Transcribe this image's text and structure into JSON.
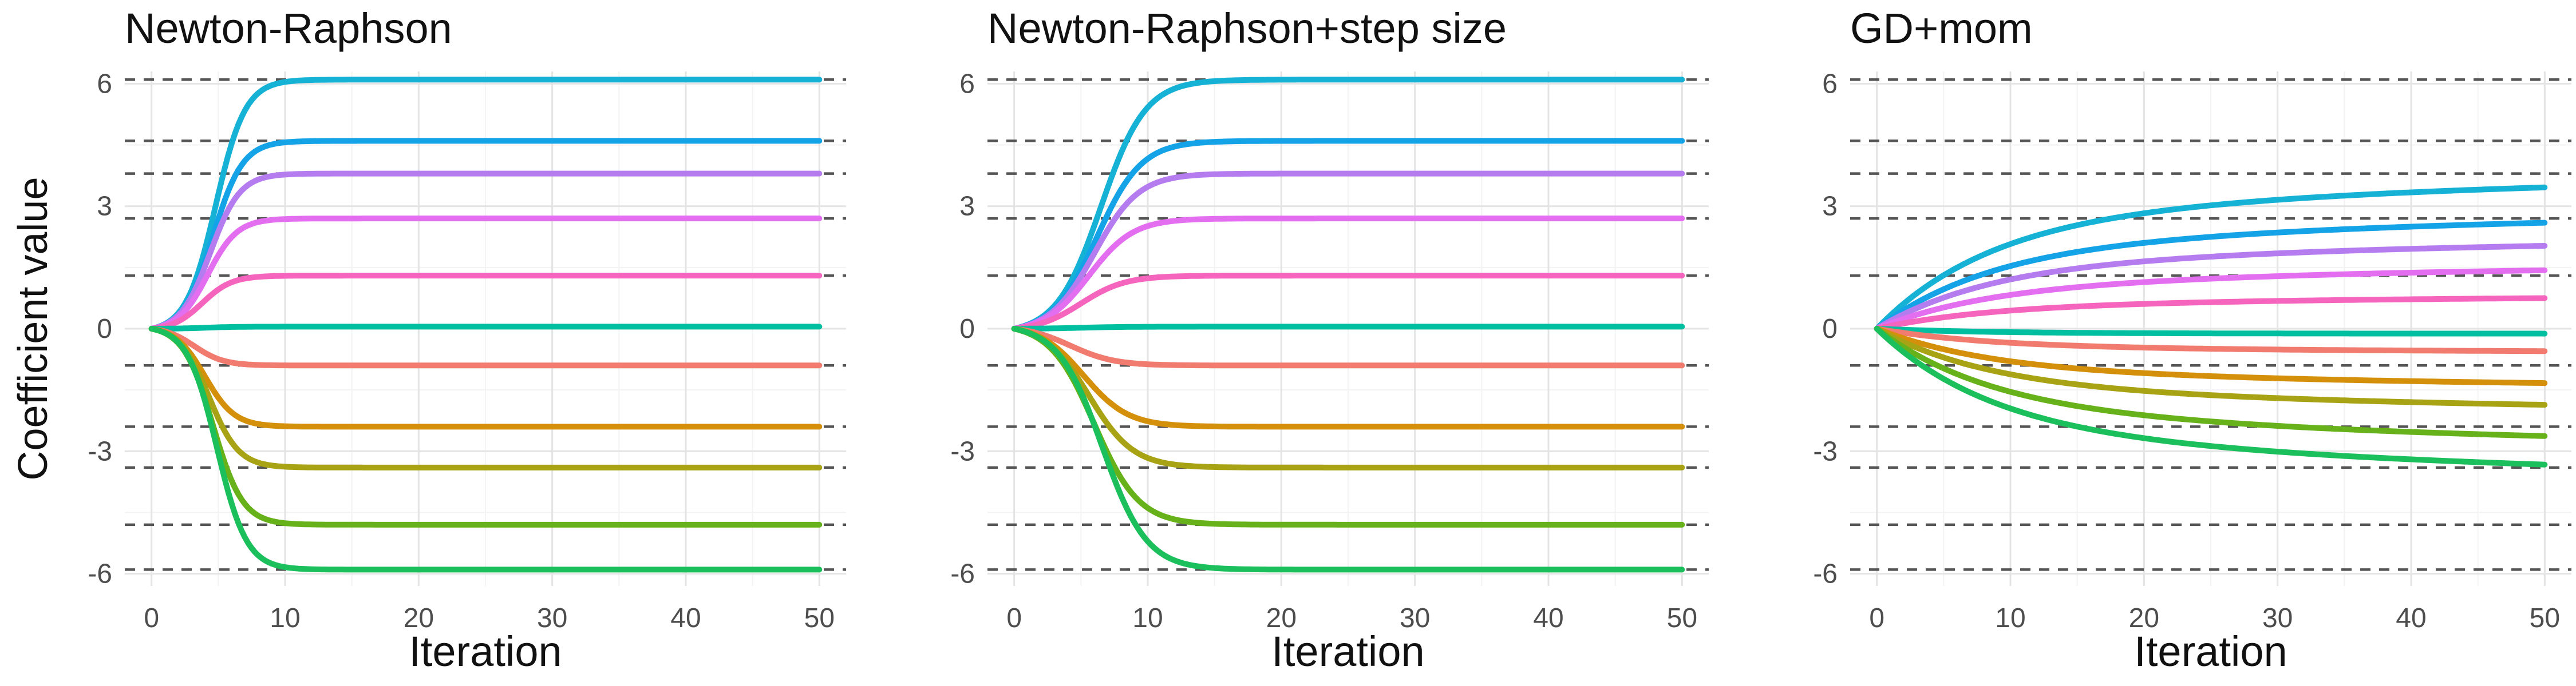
{
  "figure": {
    "ylabel": "Coefficient value"
  },
  "chart_data": [
    {
      "type": "line",
      "title": "Newton-Raphson",
      "xlabel": "Iteration",
      "ylabel": "Coefficient value",
      "xlim": [
        -2,
        52
      ],
      "ylim": [
        -6.3,
        6.3
      ],
      "x_ticks": [
        0,
        10,
        20,
        30,
        40,
        50
      ],
      "y_ticks": [
        -6,
        -3,
        0,
        3,
        6
      ],
      "grid": true,
      "reference_lines": [
        6.1,
        4.6,
        3.8,
        2.7,
        1.3,
        -0.9,
        -2.4,
        -3.4,
        -4.8,
        -5.9
      ],
      "curve_model": "sigmoid",
      "x_range": [
        0,
        50
      ],
      "series": [
        {
          "color": "#16b2d6",
          "final": 6.1,
          "rate": 0.9,
          "midpoint": 4.8
        },
        {
          "color": "#15a3e8",
          "final": 4.6,
          "rate": 0.9,
          "midpoint": 4.6
        },
        {
          "color": "#b57cf0",
          "final": 3.8,
          "rate": 0.9,
          "midpoint": 4.4
        },
        {
          "color": "#e36ef0",
          "final": 2.7,
          "rate": 0.9,
          "midpoint": 4.2
        },
        {
          "color": "#f564bd",
          "final": 1.3,
          "rate": 0.9,
          "midpoint": 3.8
        },
        {
          "color": "#00bfa0",
          "final": 0.05,
          "rate": 0.9,
          "midpoint": 4.0
        },
        {
          "color": "#f07b6e",
          "final": -0.9,
          "rate": 0.9,
          "midpoint": 3.2
        },
        {
          "color": "#d4900a",
          "final": -2.4,
          "rate": 0.9,
          "midpoint": 4.0
        },
        {
          "color": "#a8a314",
          "final": -3.4,
          "rate": 0.9,
          "midpoint": 4.3
        },
        {
          "color": "#67b21a",
          "final": -4.8,
          "rate": 0.9,
          "midpoint": 4.6
        },
        {
          "color": "#1bbf5c",
          "final": -5.9,
          "rate": 0.9,
          "midpoint": 4.9
        }
      ]
    },
    {
      "type": "line",
      "title": "Newton-Raphson+step size",
      "xlabel": "Iteration",
      "xlim": [
        -2,
        52
      ],
      "ylim": [
        -6.3,
        6.3
      ],
      "x_ticks": [
        0,
        10,
        20,
        30,
        40,
        50
      ],
      "y_ticks": [
        -6,
        -3,
        0,
        3,
        6
      ],
      "grid": true,
      "reference_lines": [
        6.1,
        4.6,
        3.8,
        2.7,
        1.3,
        -0.9,
        -2.4,
        -3.4,
        -4.8,
        -5.9
      ],
      "curve_model": "sigmoid",
      "x_range": [
        0,
        50
      ],
      "series": [
        {
          "color": "#16b2d6",
          "final": 6.1,
          "rate": 0.6,
          "midpoint": 6.5
        },
        {
          "color": "#15a3e8",
          "final": 4.6,
          "rate": 0.6,
          "midpoint": 6.2
        },
        {
          "color": "#b57cf0",
          "final": 3.8,
          "rate": 0.6,
          "midpoint": 6.0
        },
        {
          "color": "#e36ef0",
          "final": 2.7,
          "rate": 0.6,
          "midpoint": 5.6
        },
        {
          "color": "#f564bd",
          "final": 1.3,
          "rate": 0.6,
          "midpoint": 5.0
        },
        {
          "color": "#00bfa0",
          "final": 0.05,
          "rate": 0.6,
          "midpoint": 5.0
        },
        {
          "color": "#f07b6e",
          "final": -0.9,
          "rate": 0.6,
          "midpoint": 4.2
        },
        {
          "color": "#d4900a",
          "final": -2.4,
          "rate": 0.6,
          "midpoint": 5.2
        },
        {
          "color": "#a8a314",
          "final": -3.4,
          "rate": 0.6,
          "midpoint": 5.6
        },
        {
          "color": "#67b21a",
          "final": -4.8,
          "rate": 0.6,
          "midpoint": 6.0
        },
        {
          "color": "#1bbf5c",
          "final": -5.9,
          "rate": 0.6,
          "midpoint": 6.6
        }
      ]
    },
    {
      "type": "line",
      "title": "GD+mom",
      "xlabel": "Iteration",
      "xlim": [
        -2,
        52
      ],
      "ylim": [
        -6.3,
        6.3
      ],
      "x_ticks": [
        0,
        10,
        20,
        30,
        40,
        50
      ],
      "y_ticks": [
        -6,
        -3,
        0,
        3,
        6
      ],
      "grid": true,
      "reference_lines": [
        6.1,
        4.6,
        3.8,
        2.7,
        1.3,
        -0.9,
        -2.4,
        -3.4,
        -4.8,
        -5.9
      ],
      "curve_model": "saturating",
      "x_range": [
        0,
        50
      ],
      "series": [
        {
          "color": "#16b2d6",
          "a": 2.6,
          "k": 0.12,
          "b": 1.3,
          "m": 0.022
        },
        {
          "color": "#15a3e8",
          "a": 1.9,
          "k": 0.12,
          "b": 1.05,
          "m": 0.022
        },
        {
          "color": "#b57cf0",
          "a": 1.5,
          "k": 0.12,
          "b": 0.8,
          "m": 0.022
        },
        {
          "color": "#e36ef0",
          "a": 1.0,
          "k": 0.12,
          "b": 0.65,
          "m": 0.022
        },
        {
          "color": "#f564bd",
          "a": 0.55,
          "k": 0.12,
          "b": 0.3,
          "m": 0.022
        },
        {
          "color": "#00bfa0",
          "a": -0.12,
          "k": 0.12,
          "b": 0.0,
          "m": 0.022
        },
        {
          "color": "#f07b6e",
          "a": -0.45,
          "k": 0.12,
          "b": -0.15,
          "m": 0.022
        },
        {
          "color": "#d4900a",
          "a": -1.0,
          "k": 0.12,
          "b": -0.5,
          "m": 0.022
        },
        {
          "color": "#a8a314",
          "a": -1.4,
          "k": 0.12,
          "b": -0.7,
          "m": 0.022
        },
        {
          "color": "#67b21a",
          "a": -1.9,
          "k": 0.12,
          "b": -1.1,
          "m": 0.022
        },
        {
          "color": "#1bbf5c",
          "a": -2.4,
          "k": 0.12,
          "b": -1.4,
          "m": 0.022
        }
      ]
    }
  ]
}
